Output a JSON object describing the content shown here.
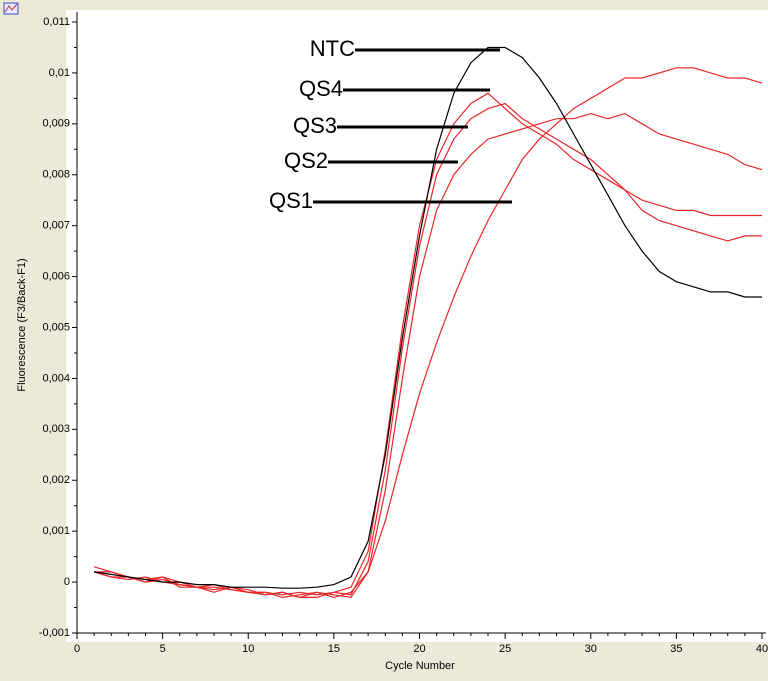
{
  "chart_data": {
    "type": "line",
    "x_label": "Cycle Number",
    "y_label": "Fluorescence (F3/Back-F1)",
    "x": [
      1,
      2,
      3,
      4,
      5,
      6,
      7,
      8,
      9,
      10,
      11,
      12,
      13,
      14,
      15,
      16,
      17,
      18,
      19,
      20,
      21,
      22,
      23,
      24,
      25,
      26,
      27,
      28,
      29,
      30,
      31,
      32,
      33,
      34,
      35,
      36,
      37,
      38,
      39,
      40
    ],
    "series": [
      {
        "name": "NTC",
        "color": "#000000",
        "values": [
          0.0002,
          0.00015,
          0.0001,
          5e-05,
          0,
          0,
          -5e-05,
          -5e-05,
          -0.0001,
          -0.0001,
          -0.0001,
          -0.00012,
          -0.00012,
          -0.0001,
          -5e-05,
          0.0001,
          0.0008,
          0.0025,
          0.0048,
          0.0068,
          0.0085,
          0.0096,
          0.0102,
          0.0105,
          0.0105,
          0.0103,
          0.0099,
          0.0094,
          0.0088,
          0.0082,
          0.0076,
          0.007,
          0.0065,
          0.0061,
          0.0059,
          0.0058,
          0.0057,
          0.0057,
          0.0056,
          0.0056
        ]
      },
      {
        "name": "QS4",
        "color": "#e8262a",
        "values": [
          0.0002,
          0.0001,
          5e-05,
          0.0001,
          0,
          -5e-05,
          -0.0001,
          -5e-05,
          -0.00015,
          -0.0002,
          -0.0002,
          -0.00025,
          -0.0002,
          -0.00025,
          -0.0002,
          -0.0001,
          0.0006,
          0.0026,
          0.005,
          0.007,
          0.0083,
          0.009,
          0.0094,
          0.0096,
          0.0093,
          0.009,
          0.0088,
          0.0086,
          0.0083,
          0.0081,
          0.0079,
          0.0077,
          0.0073,
          0.0071,
          0.007,
          0.0069,
          0.0068,
          0.0067,
          0.0068,
          0.0068
        ]
      },
      {
        "name": "QS3",
        "color": "#e8262a",
        "values": [
          0.0003,
          0.0002,
          0.0001,
          0,
          0.0001,
          -0.0001,
          -0.0001,
          -0.0002,
          -0.0001,
          -0.0002,
          -0.00025,
          -0.0002,
          -0.0003,
          -0.0003,
          -0.0002,
          -0.00025,
          0.0004,
          0.0022,
          0.0046,
          0.0066,
          0.008,
          0.0087,
          0.0091,
          0.0093,
          0.0094,
          0.0091,
          0.0089,
          0.0087,
          0.0085,
          0.0083,
          0.008,
          0.0077,
          0.0075,
          0.0074,
          0.0073,
          0.0073,
          0.0072,
          0.0072,
          0.0072,
          0.0072
        ]
      },
      {
        "name": "QS2",
        "color": "#e8262a",
        "values": [
          0.0002,
          0.0002,
          0.0001,
          5e-05,
          0.0001,
          0,
          -0.0001,
          -0.0001,
          -0.00015,
          -0.0002,
          -0.0002,
          -0.0003,
          -0.00025,
          -0.0002,
          -0.00025,
          -0.0003,
          0.0002,
          0.0018,
          0.004,
          0.006,
          0.0073,
          0.008,
          0.0084,
          0.0087,
          0.0088,
          0.0089,
          0.009,
          0.0091,
          0.0091,
          0.0092,
          0.0091,
          0.0092,
          0.009,
          0.0088,
          0.0087,
          0.0086,
          0.0085,
          0.0084,
          0.0082,
          0.0081
        ]
      },
      {
        "name": "QS1",
        "color": "#e8262a",
        "values": [
          0.0002,
          0.0001,
          0.0001,
          0,
          5e-05,
          -5e-05,
          -0.0001,
          -0.00015,
          -0.0001,
          -0.00015,
          -0.00025,
          -0.0002,
          -0.0003,
          -0.0002,
          -0.0003,
          -0.0002,
          0.0002,
          0.0012,
          0.0025,
          0.0037,
          0.0047,
          0.0056,
          0.0064,
          0.0071,
          0.0077,
          0.0083,
          0.0087,
          0.009,
          0.0093,
          0.0095,
          0.0097,
          0.0099,
          0.0099,
          0.01,
          0.0101,
          0.0101,
          0.01,
          0.0099,
          0.0099,
          0.0098
        ]
      }
    ],
    "xlim": [
      0,
      40
    ],
    "xticks": [
      0,
      5,
      10,
      15,
      20,
      25,
      30,
      35,
      40
    ],
    "ylim": [
      -0.001,
      0.011
    ],
    "yticks": [
      {
        "value": -0.001,
        "label": "-0,001"
      },
      0,
      {
        "value": 0.001,
        "label": "0,001"
      },
      {
        "value": 0.002,
        "label": "0,002"
      },
      {
        "value": 0.003,
        "label": "0,003"
      },
      {
        "value": 0.004,
        "label": "0,004"
      },
      {
        "value": 0.005,
        "label": "0,005"
      },
      {
        "value": 0.006,
        "label": "0,006"
      },
      {
        "value": 0.007,
        "label": "0,007"
      },
      {
        "value": 0.008,
        "label": "0,008"
      },
      {
        "value": 0.009,
        "label": "0,009"
      },
      {
        "value": 0.01,
        "label": "0,01"
      },
      {
        "value": 0.011,
        "label": "0,011"
      }
    ],
    "grid": false
  }
}
